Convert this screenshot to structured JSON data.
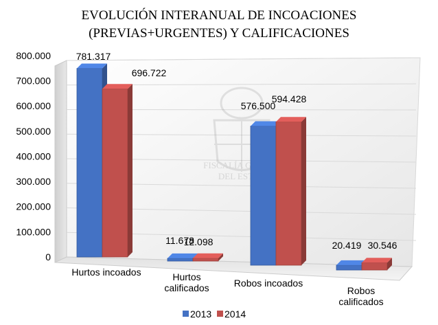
{
  "chart_data": {
    "type": "bar",
    "title_lines": [
      "EVOLUCIÓN INTERANUAL DE INCOACIONES",
      "(PREVIAS+URGENTES) Y CALIFICACIONES"
    ],
    "categories": [
      [
        "Hurtos incoados"
      ],
      [
        "Hurtos",
        "calificados"
      ],
      [
        "Robos incoados"
      ],
      [
        "Robos",
        "calificados"
      ]
    ],
    "series": [
      {
        "name": "2013",
        "color": "#4472c4",
        "values": [
          781317,
          11678,
          576500,
          20419
        ],
        "labels": [
          "781.317",
          "11.678",
          "576.500",
          "20.419"
        ]
      },
      {
        "name": "2014",
        "color": "#c0504d",
        "values": [
          696722,
          12098,
          594428,
          30546
        ],
        "labels": [
          "696.722",
          "12.098",
          "594.428",
          "30.546"
        ]
      }
    ],
    "yticks": [
      0,
      100000,
      200000,
      300000,
      400000,
      500000,
      600000,
      700000,
      800000
    ],
    "ytick_labels": [
      "0",
      "100.000",
      "200.000",
      "300.000",
      "400.000",
      "500.000",
      "600.000",
      "700.000",
      "800.000"
    ],
    "ylim": [
      0,
      800000
    ],
    "grid": true,
    "legend_position": "bottom",
    "watermark_text": [
      "FISCALÍA GENERAL",
      "DEL ESTADO"
    ]
  }
}
